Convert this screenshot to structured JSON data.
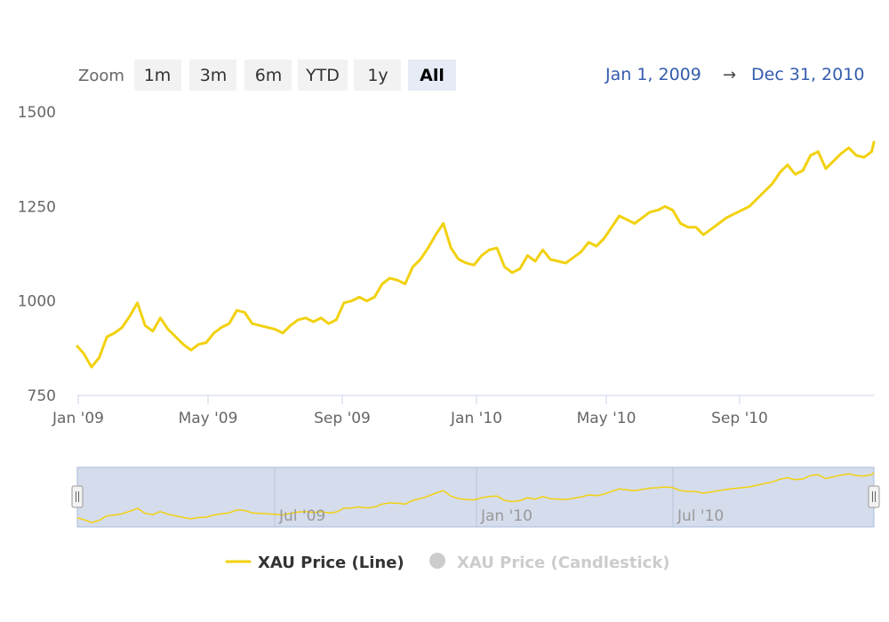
{
  "zoom": {
    "label": "Zoom",
    "buttons": [
      {
        "label": "1m",
        "active": false
      },
      {
        "label": "3m",
        "active": false
      },
      {
        "label": "6m",
        "active": false
      },
      {
        "label": "YTD",
        "active": false
      },
      {
        "label": "1y",
        "active": false
      },
      {
        "label": "All",
        "active": true
      }
    ]
  },
  "range": {
    "from": "Jan 1, 2009",
    "arrow": "→",
    "to": "Dec 31, 2010"
  },
  "navigator": {
    "labels": [
      "Jul '09",
      "Jan '10",
      "Jul '10"
    ]
  },
  "legend": [
    {
      "label": "XAU Price (Line)",
      "active": true,
      "color": "#f2d10f"
    },
    {
      "label": "XAU Price (Candlestick)",
      "active": false,
      "color": "#cccccc"
    }
  ],
  "colors": {
    "line": "#f2d10f",
    "navigator_fill": "#d5dcec",
    "navigator_border": "#aabbdd"
  },
  "chart_data": {
    "type": "line",
    "ylim": [
      750,
      1500
    ],
    "yticks": [
      "1500",
      "1250",
      "1000",
      "750"
    ],
    "xticks": [
      "Jan '09",
      "May '09",
      "Sep '09",
      "Jan '10",
      "May '10",
      "Sep '10"
    ],
    "grid": false,
    "legend_position": "bottom",
    "x_range": [
      "2009-01-01",
      "2010-12-31"
    ],
    "series": [
      {
        "name": "XAU Price (Line)",
        "x": [
          "2009-01-01",
          "2009-01-07",
          "2009-01-14",
          "2009-01-21",
          "2009-01-28",
          "2009-02-04",
          "2009-02-11",
          "2009-02-18",
          "2009-02-25",
          "2009-03-04",
          "2009-03-11",
          "2009-03-18",
          "2009-03-25",
          "2009-04-01",
          "2009-04-08",
          "2009-04-15",
          "2009-04-22",
          "2009-04-29",
          "2009-05-06",
          "2009-05-13",
          "2009-05-20",
          "2009-05-27",
          "2009-06-03",
          "2009-06-10",
          "2009-06-17",
          "2009-06-24",
          "2009-07-01",
          "2009-07-08",
          "2009-07-15",
          "2009-07-22",
          "2009-07-29",
          "2009-08-05",
          "2009-08-12",
          "2009-08-19",
          "2009-08-26",
          "2009-09-02",
          "2009-09-09",
          "2009-09-16",
          "2009-09-23",
          "2009-09-30",
          "2009-10-07",
          "2009-10-14",
          "2009-10-21",
          "2009-10-28",
          "2009-11-04",
          "2009-11-11",
          "2009-11-18",
          "2009-11-25",
          "2009-12-02",
          "2009-12-09",
          "2009-12-16",
          "2009-12-23",
          "2009-12-30",
          "2010-01-06",
          "2010-01-13",
          "2010-01-20",
          "2010-01-27",
          "2010-02-03",
          "2010-02-10",
          "2010-02-17",
          "2010-02-24",
          "2010-03-03",
          "2010-03-10",
          "2010-03-17",
          "2010-03-24",
          "2010-03-31",
          "2010-04-07",
          "2010-04-14",
          "2010-04-21",
          "2010-04-28",
          "2010-05-05",
          "2010-05-12",
          "2010-05-19",
          "2010-05-26",
          "2010-06-02",
          "2010-06-09",
          "2010-06-16",
          "2010-06-23",
          "2010-06-30",
          "2010-07-07",
          "2010-07-14",
          "2010-07-21",
          "2010-07-28",
          "2010-08-04",
          "2010-08-11",
          "2010-08-18",
          "2010-08-25",
          "2010-09-01",
          "2010-09-08",
          "2010-09-15",
          "2010-09-22",
          "2010-09-29",
          "2010-10-06",
          "2010-10-13",
          "2010-10-20",
          "2010-10-27",
          "2010-11-03",
          "2010-11-10",
          "2010-11-17",
          "2010-11-24",
          "2010-12-01",
          "2010-12-08",
          "2010-12-15",
          "2010-12-22",
          "2010-12-29",
          "2010-12-31"
        ],
        "values": [
          880,
          860,
          825,
          850,
          905,
          915,
          930,
          960,
          995,
          935,
          920,
          955,
          925,
          905,
          885,
          870,
          885,
          890,
          915,
          930,
          940,
          975,
          970,
          940,
          935,
          930,
          925,
          915,
          935,
          950,
          955,
          945,
          955,
          940,
          950,
          995,
          1000,
          1010,
          1000,
          1010,
          1045,
          1060,
          1055,
          1045,
          1090,
          1110,
          1140,
          1175,
          1205,
          1140,
          1110,
          1100,
          1095,
          1120,
          1135,
          1140,
          1090,
          1075,
          1085,
          1120,
          1105,
          1135,
          1110,
          1105,
          1100,
          1115,
          1130,
          1155,
          1145,
          1165,
          1195,
          1225,
          1215,
          1205,
          1220,
          1235,
          1240,
          1250,
          1240,
          1205,
          1195,
          1195,
          1175,
          1190,
          1205,
          1220,
          1230,
          1240,
          1250,
          1270,
          1290,
          1310,
          1340,
          1360,
          1335,
          1345,
          1385,
          1395,
          1350,
          1370,
          1390,
          1405,
          1385,
          1380,
          1395,
          1420
        ]
      }
    ]
  }
}
